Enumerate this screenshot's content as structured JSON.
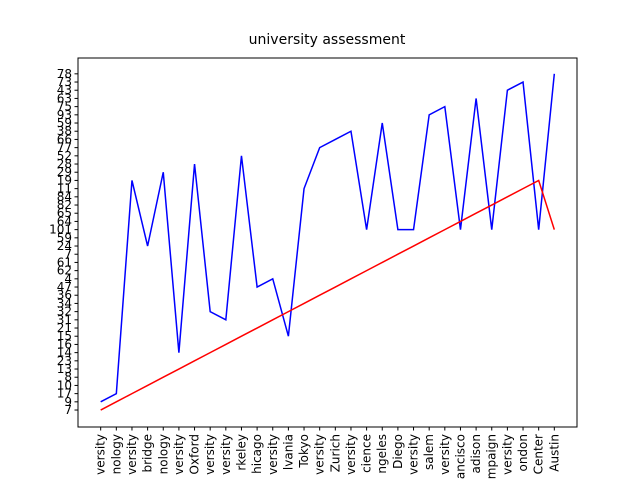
{
  "chart_data": {
    "type": "line",
    "title": "university assessment",
    "categories": [
      "versity",
      "nology",
      "versity",
      "bridge",
      "nology",
      "versity",
      "Oxford",
      "versity",
      "versity",
      "rkeley",
      "hicago",
      "versity",
      "lvania",
      "Tokyo",
      "versity",
      "Zurich",
      "versity",
      "cience",
      "ngeles",
      "Diego",
      "versity",
      "salem",
      "versity",
      "ancisco",
      "adison",
      "mpaign",
      "versity",
      "ondon",
      "Center",
      "Austin"
    ],
    "ylim": [
      -2.07,
      42.93
    ],
    "yticks": [
      {
        "value": 0,
        "label": "7"
      },
      {
        "value": 1,
        "label": "9"
      },
      {
        "value": 2,
        "label": "17"
      },
      {
        "value": 3,
        "label": "10"
      },
      {
        "value": 4,
        "label": "8"
      },
      {
        "value": 5,
        "label": "13"
      },
      {
        "value": 6,
        "label": "23"
      },
      {
        "value": 7,
        "label": "14"
      },
      {
        "value": 8,
        "label": "16"
      },
      {
        "value": 9,
        "label": "15"
      },
      {
        "value": 10,
        "label": "21"
      },
      {
        "value": 11,
        "label": "31"
      },
      {
        "value": 12,
        "label": "32"
      },
      {
        "value": 13,
        "label": "34"
      },
      {
        "value": 14,
        "label": "36"
      },
      {
        "value": 15,
        "label": "47"
      },
      {
        "value": 16,
        "label": "4"
      },
      {
        "value": 17,
        "label": "62"
      },
      {
        "value": 18,
        "label": "61"
      },
      {
        "value": 19,
        "label": "7"
      },
      {
        "value": 20,
        "label": "24"
      },
      {
        "value": 21,
        "label": "59"
      },
      {
        "value": 22,
        "label": "101"
      },
      {
        "value": 23,
        "label": "64"
      },
      {
        "value": 24,
        "label": "65"
      },
      {
        "value": 25,
        "label": "82"
      },
      {
        "value": 26,
        "label": "84"
      },
      {
        "value": 27,
        "label": "11"
      },
      {
        "value": 28,
        "label": "19"
      },
      {
        "value": 29,
        "label": "29"
      },
      {
        "value": 30,
        "label": "28"
      },
      {
        "value": 31,
        "label": "52"
      },
      {
        "value": 32,
        "label": "77"
      },
      {
        "value": 33,
        "label": "66"
      },
      {
        "value": 34,
        "label": "38"
      },
      {
        "value": 35,
        "label": "59"
      },
      {
        "value": 36,
        "label": "93"
      },
      {
        "value": 37,
        "label": "75"
      },
      {
        "value": 38,
        "label": "63"
      },
      {
        "value": 39,
        "label": "43"
      },
      {
        "value": 40,
        "label": "73"
      },
      {
        "value": 41,
        "label": "78"
      }
    ],
    "series": [
      {
        "color": "#0000ff",
        "values": [
          1,
          2,
          28,
          20,
          29,
          7,
          30,
          12,
          11,
          31,
          15,
          16,
          9,
          27,
          32,
          33,
          34,
          22,
          35,
          22,
          22,
          36,
          37,
          22,
          38,
          22,
          39,
          40,
          22,
          41
        ]
      },
      {
        "color": "#ff0000",
        "values": [
          0,
          1,
          2,
          3,
          4,
          5,
          6,
          7,
          8,
          9,
          10,
          11,
          12,
          13,
          14,
          15,
          16,
          17,
          18,
          19,
          20,
          21,
          22,
          23,
          24,
          25,
          26,
          27,
          28,
          22
        ]
      }
    ]
  }
}
